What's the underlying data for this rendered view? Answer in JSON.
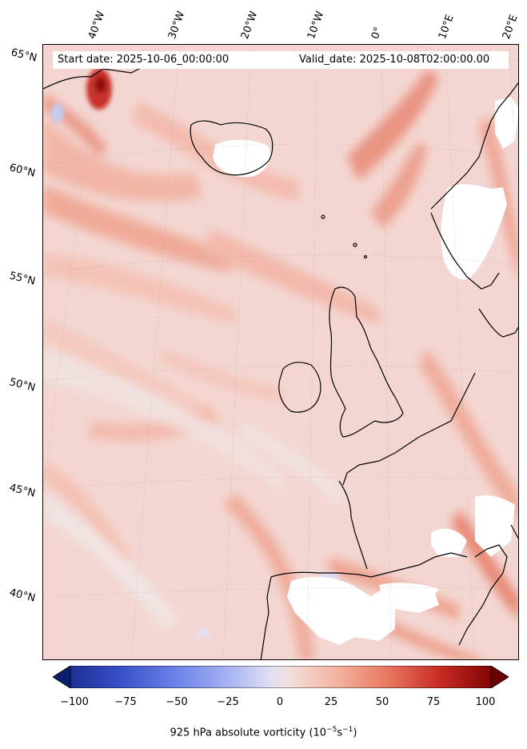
{
  "header": {
    "start_label": "Start date: 2025-10-06_00:00:00",
    "valid_label": "Valid_date: 2025-10-08T02:00:00.00"
  },
  "longitude_labels": [
    "40°W",
    "30°W",
    "20°W",
    "10°W",
    "0°",
    "10°E",
    "20°E"
  ],
  "latitude_labels": [
    "65°N",
    "60°N",
    "55°N",
    "50°N",
    "45°N",
    "40°N"
  ],
  "colorbar": {
    "ticks": [
      "−100",
      "−75",
      "−50",
      "−25",
      "0",
      "25",
      "50",
      "75",
      "100"
    ],
    "label": "925 hPa absolute vorticity (10",
    "label_exp1": "−5",
    "label_mid": "s",
    "label_exp2": "−1",
    "label_end": ")",
    "min": -100,
    "max": 100,
    "colormap": "coolwarm (blue → white → red)",
    "extend": "both",
    "colors": {
      "neg_dark": "#0b1f6e",
      "neg_mid": "#5b73e0",
      "neutral": "#f0eaea",
      "pos_light": "#f7c4b8",
      "pos_mid": "#e8604c",
      "pos_dark": "#6b0000"
    }
  },
  "map": {
    "background_color": "#f4dcd8",
    "land_missing_color": "#ffffff",
    "coastline_color": "#000000"
  }
}
